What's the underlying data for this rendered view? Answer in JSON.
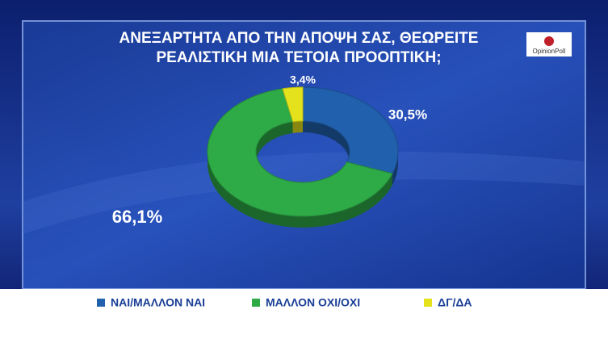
{
  "chart_data": {
    "type": "pie",
    "title": "ΑΝΕΞΑΡΤΗΤΑ ΑΠΟ ΤΗΝ ΑΠΟΨΗ ΣΑΣ, ΘΕΩΡΕΙΤΕ ΡΕΑΛΙΣΤΙΚΗ ΜΙΑ ΤΕΤΟΙΑ ΠΡΟΟΠΤΙΚΗ;",
    "logo": "OpinionPoll",
    "categories": [
      "ΝΑΙ/ΜΑΛΛΟΝ ΝΑΙ",
      "ΜΑΛΛΟΝ ΟΧΙ/ΟΧΙ",
      "ΔΓ/ΔΑ"
    ],
    "values": [
      30.5,
      66.1,
      3.4
    ],
    "value_labels": [
      "30,5%",
      "66,1%",
      "3,4%"
    ],
    "colors": [
      "#2160ad",
      "#2eaa47",
      "#e3e21c"
    ],
    "donut": true,
    "legend": "bottom"
  }
}
